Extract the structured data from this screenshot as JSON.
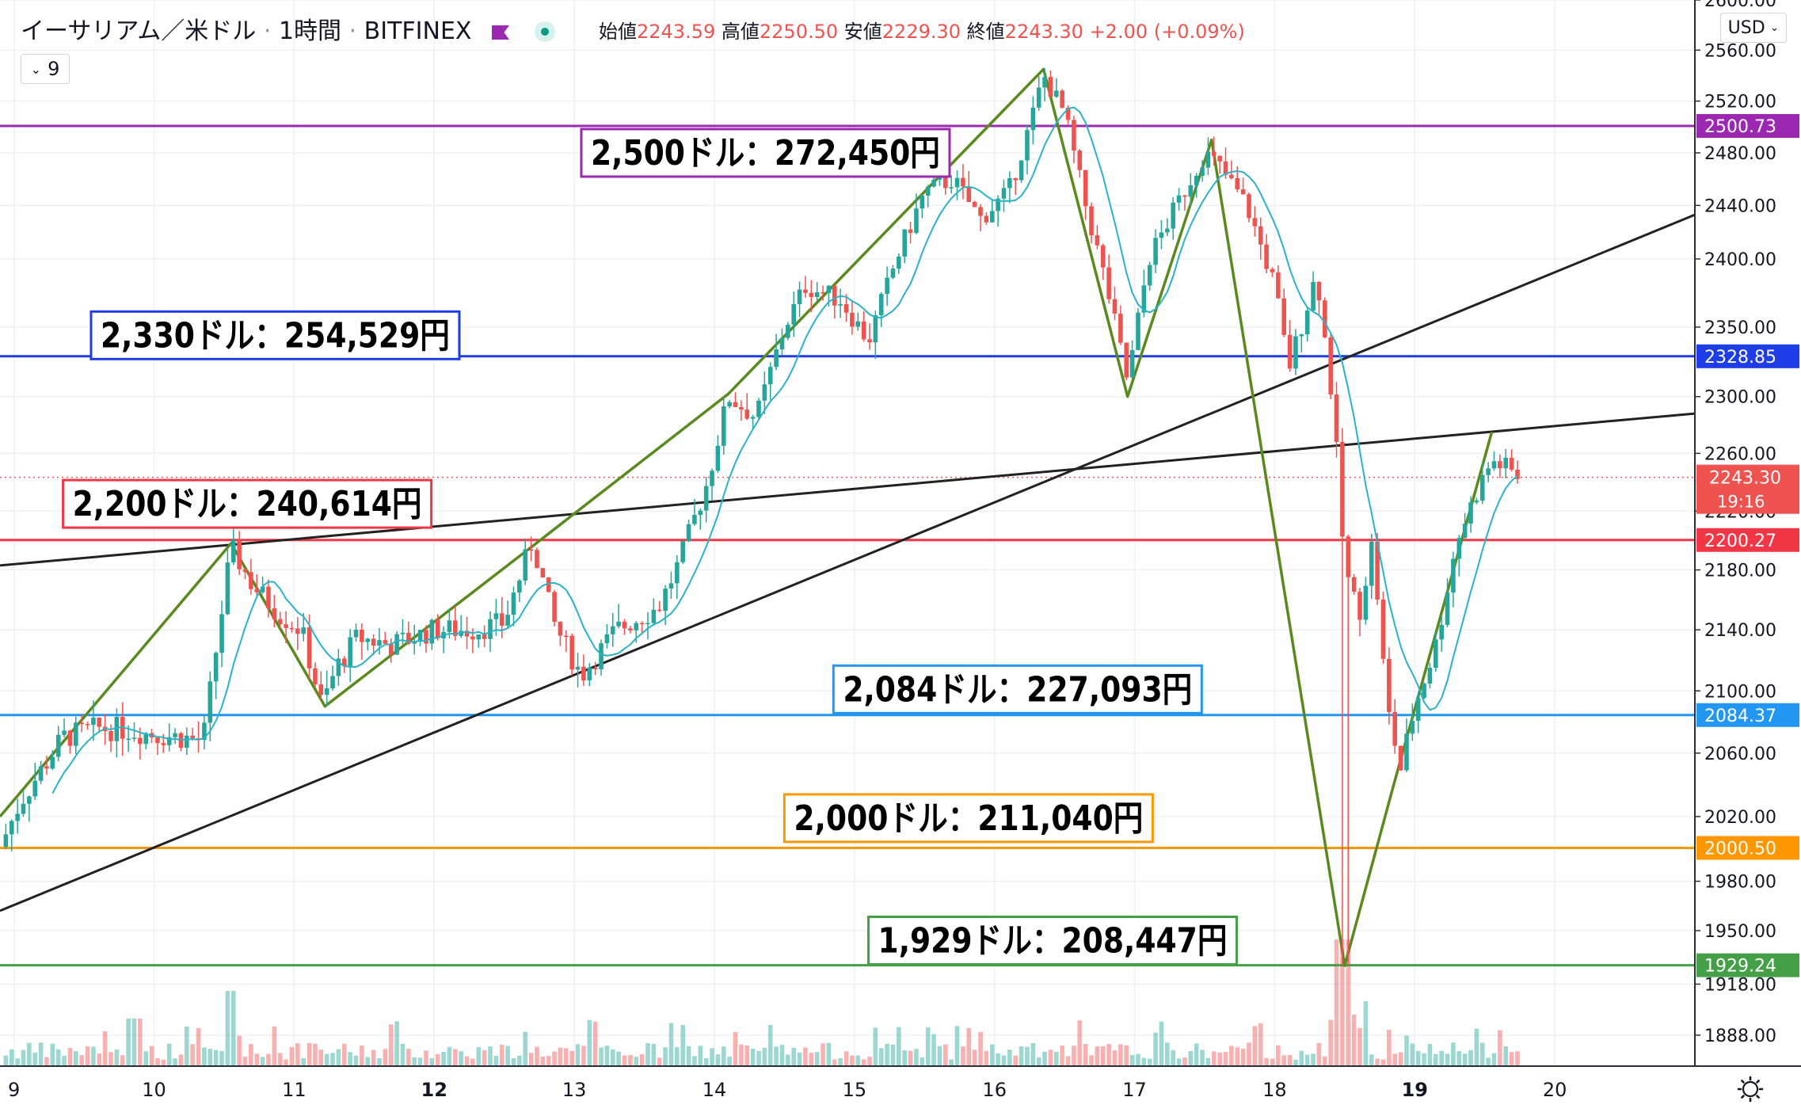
{
  "header": {
    "symbol": "イーサリアム／米ドル",
    "interval": "1時間",
    "exchange": "BITFINEX",
    "ohlc": [
      {
        "label": "始値",
        "value": "2243.59"
      },
      {
        "label": "高値",
        "value": "2250.50"
      },
      {
        "label": "安値",
        "value": "2229.30"
      },
      {
        "label": "終値",
        "value": "2243.30"
      }
    ],
    "change": "+2.00 (+0.09%)",
    "indicator_toggle": "9",
    "currency": "USD"
  },
  "colors": {
    "bull": "#26a69a",
    "bear": "#ef5350",
    "ma": "#2ab3c6",
    "pattern": "#5a8a1e",
    "trend": "#222222"
  },
  "chart_data": {
    "type": "candlestick",
    "price_axis": {
      "scale": "log",
      "range": [
        1870,
        2600
      ],
      "ticks": [
        1888.0,
        1918.0,
        1950.0,
        1980.0,
        2020.0,
        2060.0,
        2100.0,
        2140.0,
        2180.0,
        2220.0,
        2260.0,
        2300.0,
        2350.0,
        2400.0,
        2440.0,
        2480.0,
        2520.0,
        2560.0,
        2600.0
      ]
    },
    "time_axis": {
      "range": [
        8.9,
        21.0
      ],
      "ticks": [
        {
          "x": 9,
          "label": "9",
          "bold": false
        },
        {
          "x": 10,
          "label": "10",
          "bold": false
        },
        {
          "x": 11,
          "label": "11",
          "bold": false
        },
        {
          "x": 12,
          "label": "12",
          "bold": true
        },
        {
          "x": 13,
          "label": "13",
          "bold": false
        },
        {
          "x": 14,
          "label": "14",
          "bold": false
        },
        {
          "x": 15,
          "label": "15",
          "bold": false
        },
        {
          "x": 16,
          "label": "16",
          "bold": false
        },
        {
          "x": 17,
          "label": "17",
          "bold": false
        },
        {
          "x": 18,
          "label": "18",
          "bold": false
        },
        {
          "x": 19,
          "label": "19",
          "bold": true
        },
        {
          "x": 20,
          "label": "20",
          "bold": false
        }
      ]
    },
    "price_anchors": [
      [
        8.9,
        2001
      ],
      [
        9.05,
        2030
      ],
      [
        9.35,
        2070
      ],
      [
        9.6,
        2076
      ],
      [
        9.8,
        2075
      ],
      [
        10.0,
        2072
      ],
      [
        10.2,
        2070
      ],
      [
        10.35,
        2068
      ],
      [
        10.48,
        2150
      ],
      [
        10.55,
        2195
      ],
      [
        10.7,
        2170
      ],
      [
        10.9,
        2150
      ],
      [
        11.05,
        2140
      ],
      [
        11.2,
        2090
      ],
      [
        11.3,
        2115
      ],
      [
        11.45,
        2135
      ],
      [
        11.7,
        2130
      ],
      [
        12.0,
        2140
      ],
      [
        12.3,
        2140
      ],
      [
        12.5,
        2145
      ],
      [
        12.7,
        2200
      ],
      [
        12.85,
        2145
      ],
      [
        13.05,
        2110
      ],
      [
        13.3,
        2140
      ],
      [
        13.6,
        2155
      ],
      [
        13.75,
        2185
      ],
      [
        13.95,
        2240
      ],
      [
        14.1,
        2300
      ],
      [
        14.3,
        2285
      ],
      [
        14.5,
        2350
      ],
      [
        14.65,
        2380
      ],
      [
        14.9,
        2370
      ],
      [
        15.1,
        2340
      ],
      [
        15.3,
        2400
      ],
      [
        15.5,
        2450
      ],
      [
        15.7,
        2460
      ],
      [
        15.9,
        2430
      ],
      [
        16.1,
        2450
      ],
      [
        16.25,
        2500
      ],
      [
        16.35,
        2540
      ],
      [
        16.5,
        2510
      ],
      [
        16.65,
        2440
      ],
      [
        16.8,
        2380
      ],
      [
        16.95,
        2310
      ],
      [
        17.1,
        2400
      ],
      [
        17.3,
        2440
      ],
      [
        17.5,
        2480
      ],
      [
        17.6,
        2470
      ],
      [
        17.8,
        2440
      ],
      [
        18.0,
        2380
      ],
      [
        18.1,
        2320
      ],
      [
        18.3,
        2390
      ],
      [
        18.42,
        2290
      ],
      [
        18.5,
        2180
      ],
      [
        18.6,
        2150
      ],
      [
        18.7,
        2200
      ],
      [
        18.8,
        2090
      ],
      [
        18.9,
        2050
      ],
      [
        19.0,
        2090
      ],
      [
        19.15,
        2130
      ],
      [
        19.3,
        2200
      ],
      [
        19.45,
        2235
      ],
      [
        19.55,
        2255
      ],
      [
        19.65,
        2250
      ],
      [
        19.75,
        2243
      ]
    ],
    "ma_period": 9,
    "last_price": "2243.30",
    "countdown": "19:16",
    "horizontal_levels": [
      {
        "price": 2500.73,
        "tag": "2500.73",
        "color": "#9c27b0",
        "label": "2,500ドル：272,450円",
        "label_x": 13.05,
        "label_price": 2480
      },
      {
        "price": 2328.85,
        "tag": "2328.85",
        "color": "#1e3de8",
        "label": "2,330ドル：254,529円",
        "label_x": 9.55,
        "label_price": 2344
      },
      {
        "price": 2200.27,
        "tag": "2200.27",
        "color": "#f23645",
        "label": "2,200ドル：240,614円",
        "label_x": 9.35,
        "label_price": 2225
      },
      {
        "price": 2084.37,
        "tag": "2084.37",
        "color": "#2196f3",
        "label": "2,084ドル：227,093円",
        "label_x": 14.85,
        "label_price": 2101
      },
      {
        "price": 2000.5,
        "tag": "2000.50",
        "color": "#ff9800",
        "label": "2,000ドル：211,040円",
        "label_x": 14.5,
        "label_price": 2019
      },
      {
        "price": 1929.24,
        "tag": "1929.24",
        "color": "#43a047",
        "label": "1,929ドル：208,447円",
        "label_x": 15.1,
        "label_price": 1944
      }
    ],
    "zigzag": [
      [
        8.9,
        2020
      ],
      [
        10.55,
        2198
      ],
      [
        11.22,
        2090
      ],
      [
        12.7,
        2196
      ],
      [
        14.1,
        2302
      ],
      [
        16.35,
        2545
      ],
      [
        16.95,
        2300
      ],
      [
        17.55,
        2490
      ],
      [
        18.5,
        1929
      ],
      [
        18.85,
        2040
      ],
      [
        19.55,
        2275
      ]
    ],
    "trendlines": [
      {
        "from": [
          8.9,
          2183
        ],
        "to": [
          21.0,
          2288
        ]
      },
      {
        "from": [
          8.9,
          1962
        ],
        "to": [
          21.0,
          2433
        ]
      }
    ]
  }
}
